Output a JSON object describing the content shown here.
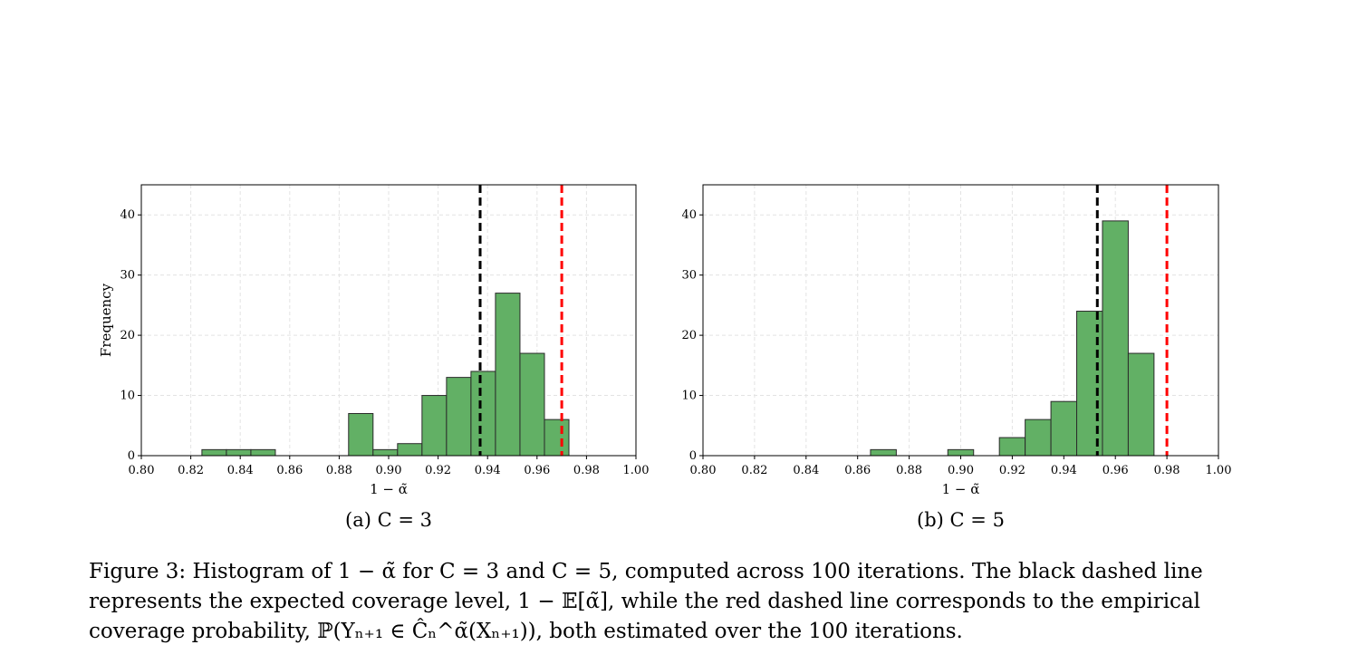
{
  "chart_data": [
    {
      "type": "histogram",
      "panel_label": "(a) C = 3",
      "xlabel": "1 − α̃",
      "ylabel": "Frequency",
      "xlim": [
        0.8,
        1.0
      ],
      "ylim": [
        0,
        45
      ],
      "xticks": [
        "0.80",
        "0.82",
        "0.84",
        "0.86",
        "0.88",
        "0.90",
        "0.92",
        "0.94",
        "0.96",
        "0.98",
        "1.00"
      ],
      "yticks": [
        "0",
        "10",
        "20",
        "30",
        "40"
      ],
      "grid": true,
      "bars": [
        {
          "x0": 0.8245,
          "x1": 0.8344,
          "count": 1
        },
        {
          "x0": 0.8344,
          "x1": 0.8443,
          "count": 1
        },
        {
          "x0": 0.8443,
          "x1": 0.8542,
          "count": 1
        },
        {
          "x0": 0.8838,
          "x1": 0.8937,
          "count": 7
        },
        {
          "x0": 0.8937,
          "x1": 0.9036,
          "count": 1
        },
        {
          "x0": 0.9036,
          "x1": 0.9135,
          "count": 2
        },
        {
          "x0": 0.9135,
          "x1": 0.9234,
          "count": 10
        },
        {
          "x0": 0.9234,
          "x1": 0.9333,
          "count": 13
        },
        {
          "x0": 0.9333,
          "x1": 0.9432,
          "count": 14
        },
        {
          "x0": 0.9432,
          "x1": 0.9531,
          "count": 27
        },
        {
          "x0": 0.9531,
          "x1": 0.963,
          "count": 17
        },
        {
          "x0": 0.963,
          "x1": 0.9729,
          "count": 6
        }
      ],
      "vlines": [
        {
          "x": 0.937,
          "color": "#000000",
          "meaning": "expected coverage 1 − E[α̃]"
        },
        {
          "x": 0.97,
          "color": "#ff0000",
          "meaning": "empirical coverage probability"
        }
      ]
    },
    {
      "type": "histogram",
      "panel_label": "(b) C = 5",
      "xlabel": "1 − α̃",
      "ylabel": "",
      "xlim": [
        0.8,
        1.0
      ],
      "ylim": [
        0,
        45
      ],
      "xticks": [
        "0.80",
        "0.82",
        "0.84",
        "0.86",
        "0.88",
        "0.90",
        "0.92",
        "0.94",
        "0.96",
        "0.98",
        "1.00"
      ],
      "yticks": [
        "0",
        "10",
        "20",
        "30",
        "40"
      ],
      "grid": true,
      "bars": [
        {
          "x0": 0.865,
          "x1": 0.875,
          "count": 1
        },
        {
          "x0": 0.895,
          "x1": 0.905,
          "count": 1
        },
        {
          "x0": 0.915,
          "x1": 0.925,
          "count": 3
        },
        {
          "x0": 0.925,
          "x1": 0.935,
          "count": 6
        },
        {
          "x0": 0.935,
          "x1": 0.945,
          "count": 9
        },
        {
          "x0": 0.945,
          "x1": 0.955,
          "count": 24
        },
        {
          "x0": 0.955,
          "x1": 0.965,
          "count": 39
        },
        {
          "x0": 0.965,
          "x1": 0.975,
          "count": 17
        }
      ],
      "vlines": [
        {
          "x": 0.953,
          "color": "#000000",
          "meaning": "expected coverage 1 − E[α̃]"
        },
        {
          "x": 0.98,
          "color": "#ff0000",
          "meaning": "empirical coverage probability"
        }
      ]
    }
  ],
  "colors": {
    "bar_fill": "#62b065",
    "bar_edge": "#2a2a2a",
    "grid": "#e3e3e3"
  },
  "caption": "Figure 3: Histogram of 1 − α̃ for C = 3 and C = 5, computed across 100 iterations. The black dashed line represents the expected coverage level, 1 − 𝔼[α̃], while the red dashed line corresponds to the empirical coverage probability, ℙ(Yₙ₊₁ ∈ Ĉₙ^α̃(Xₙ₊₁)), both estimated over the 100 iterations."
}
